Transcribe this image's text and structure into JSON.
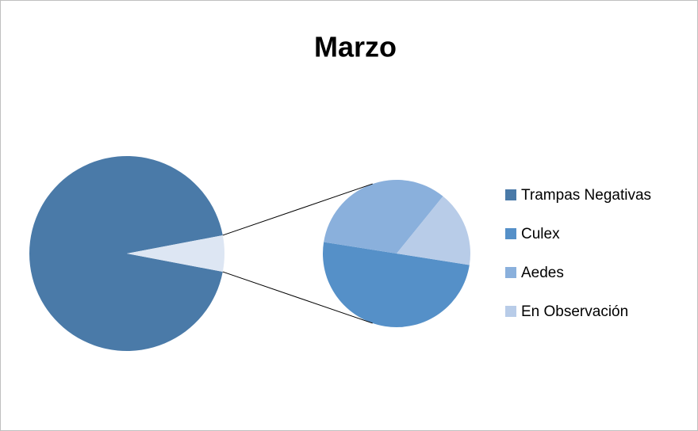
{
  "chart_data": {
    "type": "pie-of-pie",
    "title": "Marzo",
    "categories": [
      "Trampas Negativas",
      "Culex",
      "Aedes",
      "En Observación"
    ],
    "values": [
      94,
      3,
      2,
      1
    ],
    "colors": [
      "#4a7aa8",
      "#5590c8",
      "#8ab0dc",
      "#b8cce8"
    ],
    "legend": "right"
  }
}
